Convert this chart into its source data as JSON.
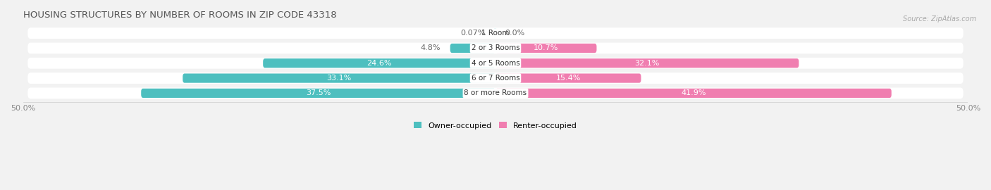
{
  "title": "HOUSING STRUCTURES BY NUMBER OF ROOMS IN ZIP CODE 43318",
  "source": "Source: ZipAtlas.com",
  "categories": [
    "1 Room",
    "2 or 3 Rooms",
    "4 or 5 Rooms",
    "6 or 7 Rooms",
    "8 or more Rooms"
  ],
  "owner_values": [
    0.07,
    4.8,
    24.6,
    33.1,
    37.5
  ],
  "renter_values": [
    0.0,
    10.7,
    32.1,
    15.4,
    41.9
  ],
  "owner_color": "#4DBFBF",
  "renter_color": "#F07EB0",
  "label_color_dark": "#666666",
  "label_color_light": "#ffffff",
  "background_color": "#f2f2f2",
  "axis_max": 50.0,
  "bar_height": 0.62,
  "title_fontsize": 9.5,
  "source_fontsize": 7,
  "tick_fontsize": 8,
  "label_fontsize": 8,
  "category_fontsize": 7.5,
  "owner_threshold": 10.0,
  "renter_threshold": 10.0
}
